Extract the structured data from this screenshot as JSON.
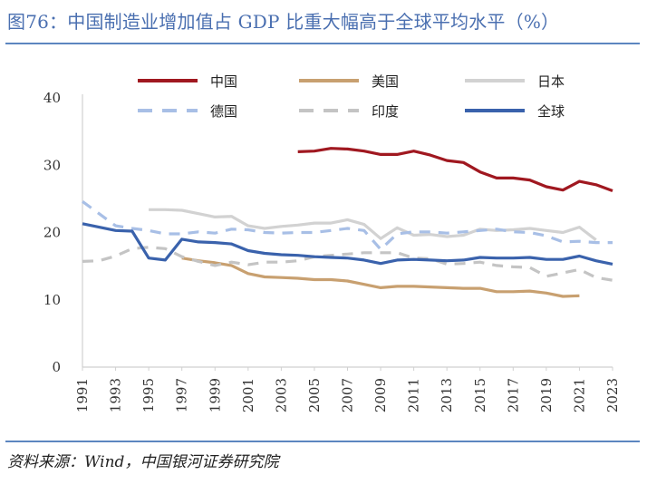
{
  "title": "图76：中国制造业增加值占 GDP 比重大幅高于全球平均水平（%）",
  "source": "资料来源：Wind，中国银河证券研究院",
  "chart_data": {
    "type": "line",
    "x": [
      1991,
      1992,
      1993,
      1994,
      1995,
      1996,
      1997,
      1998,
      1999,
      2000,
      2001,
      2002,
      2003,
      2004,
      2005,
      2006,
      2007,
      2008,
      2009,
      2010,
      2011,
      2012,
      2013,
      2014,
      2015,
      2016,
      2017,
      2018,
      2019,
      2020,
      2021,
      2022,
      2023
    ],
    "x_ticks": [
      "1991",
      "1993",
      "1995",
      "1997",
      "1999",
      "2001",
      "2003",
      "2005",
      "2007",
      "2009",
      "2011",
      "2013",
      "2015",
      "2017",
      "2019",
      "2021",
      "2023"
    ],
    "y_ticks": [
      "0",
      "10",
      "20",
      "30",
      "40"
    ],
    "ylim": [
      0,
      40
    ],
    "grid": false,
    "legend_position": "top",
    "series": [
      {
        "name": "中国",
        "color": "#a01820",
        "dash": "solid",
        "values": [
          null,
          null,
          null,
          null,
          null,
          null,
          null,
          null,
          null,
          null,
          null,
          null,
          null,
          32.0,
          32.1,
          32.5,
          32.4,
          32.1,
          31.6,
          31.6,
          32.1,
          31.5,
          30.7,
          30.4,
          29.0,
          28.1,
          28.1,
          27.8,
          26.8,
          26.3,
          27.6,
          27.1,
          26.2
        ]
      },
      {
        "name": "美国",
        "color": "#c8a070",
        "dash": "solid",
        "values": [
          null,
          null,
          null,
          null,
          null,
          null,
          16.2,
          15.8,
          15.5,
          15.1,
          13.9,
          13.4,
          13.3,
          13.2,
          13.0,
          13.0,
          12.8,
          12.3,
          11.8,
          12.0,
          12.0,
          11.9,
          11.8,
          11.7,
          11.7,
          11.2,
          11.2,
          11.3,
          11.0,
          10.5,
          10.6,
          null,
          null
        ]
      },
      {
        "name": "日本",
        "color": "#d2d2d2",
        "dash": "solid",
        "values": [
          null,
          null,
          null,
          null,
          23.4,
          23.4,
          23.3,
          22.8,
          22.3,
          22.4,
          21.0,
          20.6,
          20.9,
          21.1,
          21.4,
          21.4,
          21.9,
          21.2,
          19.1,
          20.7,
          19.6,
          19.7,
          19.4,
          19.6,
          20.5,
          20.3,
          20.4,
          20.6,
          20.3,
          20.0,
          20.8,
          18.9,
          null
        ]
      },
      {
        "name": "德国",
        "color": "#a8bfe6",
        "dash": "dash",
        "values": [
          24.6,
          22.8,
          21.0,
          20.6,
          20.3,
          19.8,
          19.8,
          20.1,
          19.9,
          20.5,
          20.4,
          20.0,
          19.9,
          20.0,
          20.0,
          20.3,
          20.6,
          20.3,
          17.5,
          19.8,
          20.1,
          20.1,
          19.9,
          20.1,
          20.3,
          20.5,
          20.1,
          20.0,
          19.5,
          18.6,
          18.7,
          18.5,
          18.5
        ]
      },
      {
        "name": "印度",
        "color": "#c4c4c4",
        "dash": "dash",
        "values": [
          15.7,
          15.8,
          16.5,
          17.6,
          17.8,
          17.6,
          16.4,
          15.7,
          15.1,
          15.6,
          15.2,
          15.6,
          15.6,
          15.8,
          16.4,
          16.6,
          16.8,
          17.0,
          17.0,
          17.0,
          16.2,
          16.1,
          15.3,
          15.4,
          15.6,
          15.1,
          14.9,
          14.8,
          13.5,
          14.0,
          14.5,
          13.3,
          12.9
        ]
      },
      {
        "name": "全球",
        "color": "#3a62ac",
        "dash": "solid",
        "values": [
          21.3,
          20.8,
          20.3,
          20.2,
          16.2,
          15.9,
          19.0,
          18.6,
          18.5,
          18.3,
          17.3,
          16.9,
          16.7,
          16.6,
          16.4,
          16.3,
          16.2,
          15.9,
          15.4,
          15.9,
          16.0,
          15.9,
          15.8,
          15.9,
          16.3,
          16.2,
          16.2,
          16.3,
          16.0,
          16.0,
          16.5,
          15.8,
          15.3
        ]
      }
    ]
  }
}
